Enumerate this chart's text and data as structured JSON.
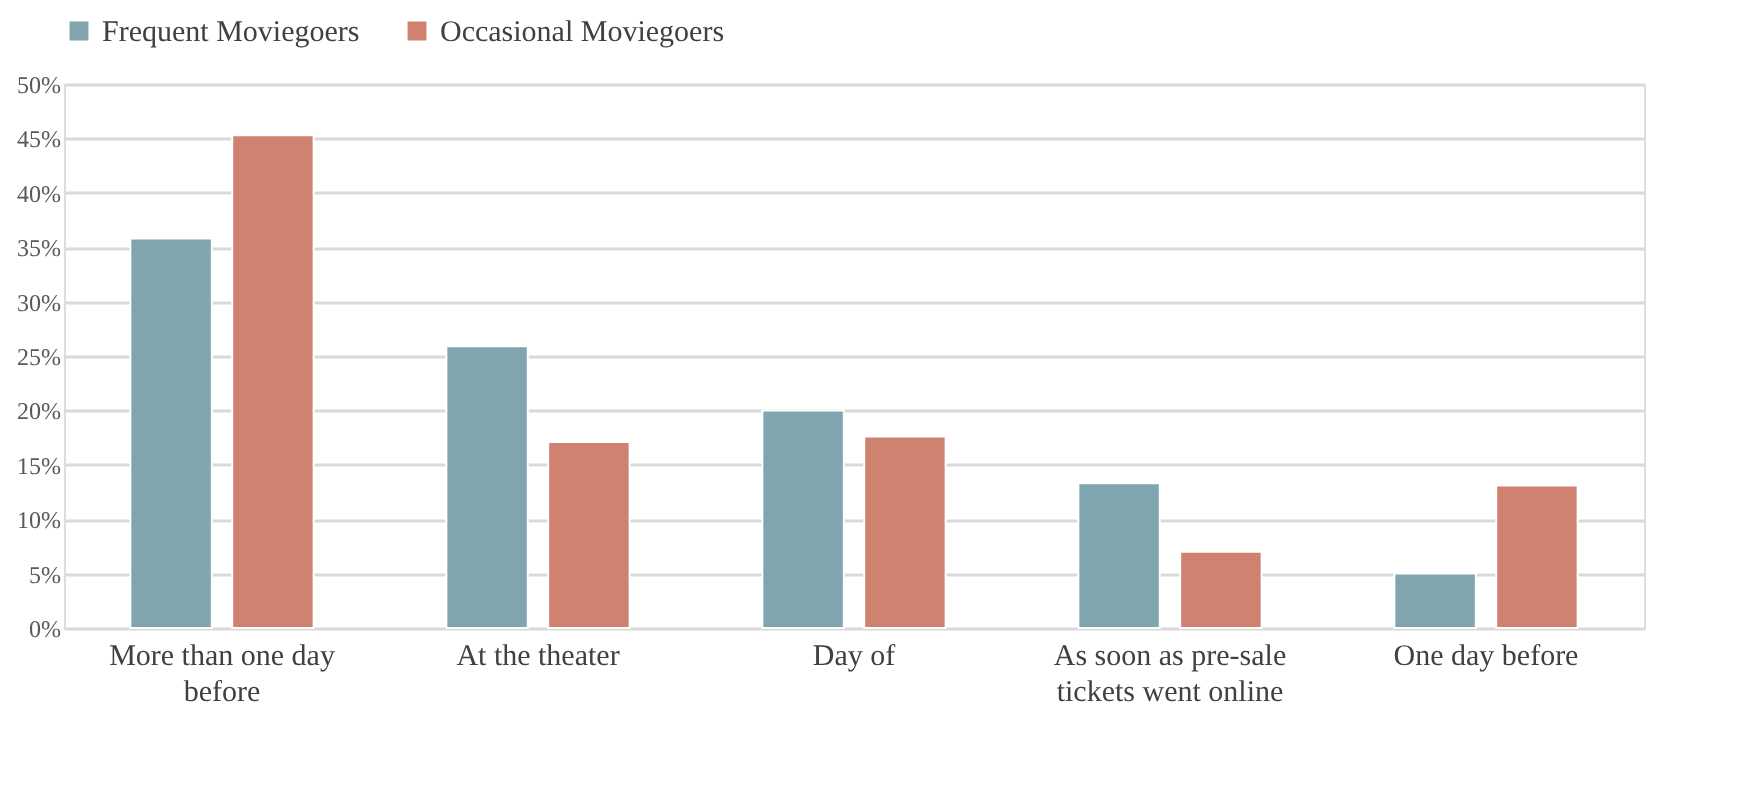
{
  "chart_data": {
    "type": "bar",
    "categories": [
      "More than one day before",
      "At the theater",
      "Day of",
      "As soon as pre-sale tickets went online",
      "One day before"
    ],
    "series": [
      {
        "name": "Frequent Moviegoers",
        "color": "#80a5ae",
        "values": [
          35.8,
          25.9,
          20.0,
          13.3,
          5.0
        ]
      },
      {
        "name": "Occasional Moviegoers",
        "color": "#d08270",
        "values": [
          45.3,
          17.1,
          17.6,
          7.0,
          13.1
        ]
      }
    ],
    "ylim": [
      0,
      50
    ],
    "yticks": [
      {
        "value": 0,
        "label": "0%"
      },
      {
        "value": 5,
        "label": "5%"
      },
      {
        "value": 10,
        "label": "10%"
      },
      {
        "value": 15,
        "label": "15%"
      },
      {
        "value": 20,
        "label": "20%"
      },
      {
        "value": 25,
        "label": "25%"
      },
      {
        "value": 30,
        "label": "30%"
      },
      {
        "value": 35,
        "label": "35%"
      },
      {
        "value": 40,
        "label": "40%"
      },
      {
        "value": 45,
        "label": "45%"
      },
      {
        "value": 50,
        "label": "50%"
      }
    ],
    "grid": "y",
    "legend": "top"
  }
}
